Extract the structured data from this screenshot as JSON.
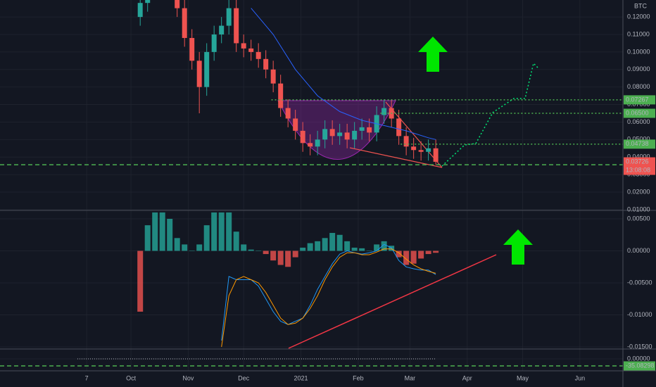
{
  "chart_data": [
    {
      "type": "candlestick",
      "unit": "BTC",
      "x": [
        5,
        9,
        13,
        17,
        21,
        25,
        29,
        33,
        37,
        41,
        45,
        49,
        53,
        57,
        61,
        65,
        69,
        73,
        77,
        81,
        85,
        89,
        93,
        97,
        101,
        105,
        109,
        113,
        117,
        121,
        125,
        129,
        133,
        137,
        141,
        145,
        149,
        153,
        157,
        161,
        165
      ],
      "open": [
        0.12,
        0.128,
        0.135,
        0.14,
        0.138,
        0.135,
        0.125,
        0.108,
        0.095,
        0.08,
        0.1,
        0.11,
        0.115,
        0.125,
        0.105,
        0.102,
        0.1,
        0.096,
        0.09,
        0.082,
        0.068,
        0.062,
        0.055,
        0.048,
        0.046,
        0.05,
        0.056,
        0.052,
        0.054,
        0.05,
        0.055,
        0.057,
        0.054,
        0.064,
        0.068,
        0.062,
        0.052,
        0.046,
        0.044,
        0.043,
        0.045
      ],
      "high": [
        0.133,
        0.14,
        0.145,
        0.145,
        0.143,
        0.14,
        0.13,
        0.113,
        0.1,
        0.105,
        0.115,
        0.12,
        0.13,
        0.13,
        0.11,
        0.107,
        0.105,
        0.101,
        0.095,
        0.087,
        0.073,
        0.067,
        0.06,
        0.053,
        0.055,
        0.061,
        0.061,
        0.059,
        0.059,
        0.06,
        0.062,
        0.062,
        0.069,
        0.073,
        0.073,
        0.067,
        0.057,
        0.051,
        0.049,
        0.05,
        0.05
      ],
      "low": [
        0.115,
        0.123,
        0.13,
        0.133,
        0.13,
        0.12,
        0.103,
        0.09,
        0.065,
        0.075,
        0.095,
        0.105,
        0.11,
        0.1,
        0.097,
        0.095,
        0.091,
        0.085,
        0.077,
        0.063,
        0.057,
        0.05,
        0.043,
        0.041,
        0.041,
        0.045,
        0.047,
        0.047,
        0.045,
        0.045,
        0.05,
        0.049,
        0.049,
        0.059,
        0.057,
        0.047,
        0.041,
        0.039,
        0.038,
        0.038,
        0.0356
      ],
      "close": [
        0.128,
        0.135,
        0.14,
        0.138,
        0.135,
        0.125,
        0.108,
        0.095,
        0.08,
        0.1,
        0.11,
        0.115,
        0.125,
        0.105,
        0.102,
        0.1,
        0.096,
        0.09,
        0.082,
        0.068,
        0.062,
        0.055,
        0.048,
        0.046,
        0.05,
        0.056,
        0.052,
        0.054,
        0.05,
        0.055,
        0.057,
        0.054,
        0.064,
        0.068,
        0.062,
        0.052,
        0.046,
        0.044,
        0.043,
        0.045,
        0.0373
      ],
      "up_color": "#26a69a",
      "down_color": "#ef5350",
      "moving_average": {
        "color": "#2962ff",
        "x": [
          65,
          77,
          89,
          101,
          113,
          125,
          137,
          149,
          161,
          165
        ],
        "values": [
          0.125,
          0.11,
          0.09,
          0.075,
          0.066,
          0.061,
          0.058,
          0.055,
          0.051,
          0.05
        ]
      },
      "ylim": [
        0.00996,
        0.12968
      ],
      "yticks": [
        {
          "value": 0.12,
          "label": "0.12000"
        },
        {
          "value": 0.11,
          "label": "0.11000"
        },
        {
          "value": 0.1,
          "label": "0.10000"
        },
        {
          "value": 0.09,
          "label": "0.09000"
        },
        {
          "value": 0.08,
          "label": "0.08000"
        },
        {
          "value": 0.07,
          "label": "0.07000"
        },
        {
          "value": 0.06,
          "label": "0.06000"
        },
        {
          "value": 0.05,
          "label": "0.05000"
        },
        {
          "value": 0.04,
          "label": "0.04000"
        },
        {
          "value": 0.03,
          "label": "0.03000"
        },
        {
          "value": 0.02,
          "label": "0.02000"
        },
        {
          "value": 0.01,
          "label": "0.01000"
        }
      ],
      "levels": [
        {
          "value": 0.07267,
          "label": "0.07267",
          "color": "#4caf50",
          "style": "dotted",
          "start": 76
        },
        {
          "value": 0.065,
          "label": "0.06500",
          "color": "#4caf50",
          "style": "dotted",
          "start": 135
        },
        {
          "value": 0.04738,
          "label": "0.04738",
          "color": "#4caf50",
          "style": "dotted",
          "start": 146
        },
        {
          "value": 0.03564,
          "label": "0.03564",
          "color": "#4caf50",
          "style": "dashed",
          "start": -70.9
        }
      ],
      "last_price": {
        "value": 0.03726,
        "label": "0.03726",
        "countdown": "13:08:08",
        "color": "#ef5350"
      },
      "grid": true
    },
    {
      "type": "macd",
      "x": [
        5,
        9,
        13,
        17,
        21,
        25,
        29,
        33,
        37,
        41,
        45,
        49,
        53,
        57,
        61,
        65,
        69,
        73,
        77,
        81,
        85,
        89,
        93,
        97,
        101,
        105,
        109,
        113,
        117,
        121,
        125,
        129,
        133,
        137,
        141,
        145,
        149,
        153,
        157,
        161,
        165
      ],
      "histogram": [
        -0.0095,
        0.004,
        0.006,
        0.006,
        0.005,
        0.002,
        0.001,
        0.0,
        0.001,
        0.004,
        0.006,
        0.006,
        0.006,
        0.003,
        0.001,
        0.0002,
        0.0,
        -0.0005,
        -0.0015,
        -0.0022,
        -0.0025,
        -0.001,
        0.0005,
        0.0012,
        0.0015,
        0.002,
        0.0028,
        0.0025,
        0.0015,
        0.0005,
        0.0004,
        0.0,
        0.001,
        0.0015,
        0.0008,
        -0.001,
        -0.0022,
        -0.002,
        -0.0012,
        -0.0005,
        -0.0003
      ],
      "positive_color": "#26a69a",
      "negative_color": "#ef5350",
      "series": [
        {
          "color": "#2196f3",
          "x": [
            49,
            53,
            57,
            61,
            65,
            69,
            73,
            77,
            81,
            85,
            89,
            93,
            97,
            101,
            105,
            109,
            113,
            117,
            121,
            125,
            129,
            133,
            137,
            141,
            145,
            149,
            153,
            157,
            161,
            165
          ],
          "values": [
            -0.014,
            -0.004,
            -0.0045,
            -0.0045,
            -0.0045,
            -0.0055,
            -0.0075,
            -0.0095,
            -0.011,
            -0.0115,
            -0.011,
            -0.0105,
            -0.0085,
            -0.006,
            -0.004,
            -0.002,
            -0.0005,
            0.0,
            -0.0003,
            -0.0005,
            -0.0003,
            0.0,
            0.001,
            0.0005,
            -0.0015,
            -0.0025,
            -0.0028,
            -0.003,
            -0.003,
            -0.0037
          ]
        },
        {
          "color": "#ff9800",
          "x": [
            49,
            53,
            57,
            61,
            65,
            69,
            73,
            77,
            81,
            85,
            89,
            93,
            97,
            101,
            105,
            109,
            113,
            117,
            121,
            125,
            129,
            133,
            137,
            141,
            145,
            149,
            153,
            157,
            161,
            165
          ],
          "values": [
            -0.015,
            -0.007,
            -0.0045,
            -0.004,
            -0.0045,
            -0.005,
            -0.0065,
            -0.0085,
            -0.0105,
            -0.0115,
            -0.0113,
            -0.0105,
            -0.009,
            -0.007,
            -0.0045,
            -0.0025,
            -0.001,
            -0.0003,
            -0.0003,
            -0.0006,
            -0.0006,
            -0.0002,
            0.0003,
            0.0003,
            -0.0003,
            -0.0013,
            -0.0022,
            -0.0028,
            -0.0032,
            -0.0035
          ]
        }
      ],
      "ylim": [
        -0.01522,
        0.00621
      ],
      "yticks": [
        {
          "value": 0.005,
          "label": "0.00500"
        },
        {
          "value": 0,
          "label": "0.00000"
        },
        {
          "value": -0.005,
          "label": "-0.00500"
        },
        {
          "value": -0.01,
          "label": "-0.01000"
        },
        {
          "value": -0.015,
          "label": "-0.01500"
        }
      ],
      "grid": true
    },
    {
      "type": "line",
      "series": [
        {
          "color": "#b2b5be",
          "x": [
            -29,
            165
          ],
          "values": [
            0,
            0
          ]
        }
      ],
      "ylim": [
        -59.6,
        45.6
      ],
      "yticks": [
        {
          "value": 0,
          "label": "0.00000"
        }
      ],
      "levels": [
        {
          "value": -35.08298,
          "color": "#4caf50",
          "style": "dashed",
          "start": -70.9
        }
      ],
      "xlim": [
        -70.9,
        266.3
      ],
      "xticks": [
        {
          "value": -24,
          "label": "7"
        },
        {
          "value": 0,
          "label": "Oct"
        },
        {
          "value": 31,
          "label": "Nov"
        },
        {
          "value": 61,
          "label": "Dec"
        },
        {
          "value": 92,
          "label": "2021"
        },
        {
          "value": 123,
          "label": "Feb"
        },
        {
          "value": 151,
          "label": "Mar"
        },
        {
          "value": 182,
          "label": "Apr"
        },
        {
          "value": 212,
          "label": "May"
        },
        {
          "value": 243,
          "label": "Jun"
        }
      ],
      "grid": true
    }
  ]
}
